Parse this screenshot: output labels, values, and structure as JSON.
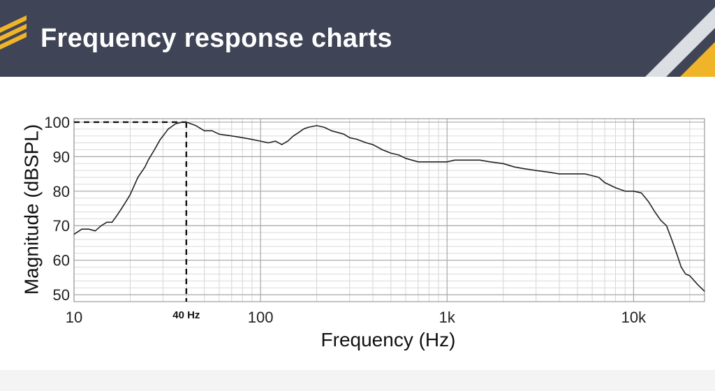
{
  "header": {
    "title": "Frequency response charts",
    "bg_color": "#3f4557",
    "accent_color": "#f0b429"
  },
  "chart_data": {
    "type": "line",
    "xscale": "log",
    "xlim": [
      10,
      24000
    ],
    "ylim": [
      48,
      101
    ],
    "grid": true,
    "xlabel": "Frequency (Hz)",
    "ylabel": "Magnitude (dBSPL)",
    "x_ticks": [
      {
        "value": 10,
        "label": "10"
      },
      {
        "value": 100,
        "label": "100"
      },
      {
        "value": 1000,
        "label": "1k"
      },
      {
        "value": 10000,
        "label": "10k"
      }
    ],
    "y_ticks": [
      {
        "value": 100,
        "label": "100"
      },
      {
        "value": 90,
        "label": "90"
      },
      {
        "value": 80,
        "label": "80"
      },
      {
        "value": 70,
        "label": "70"
      },
      {
        "value": 60,
        "label": "60"
      },
      {
        "value": 50,
        "label": "50"
      }
    ],
    "annotation": {
      "x": 40,
      "y": 100,
      "label": "40 Hz",
      "style": "dashed"
    },
    "series": [
      {
        "color": "#222222",
        "x": [
          10,
          11,
          12,
          13,
          14,
          15,
          16,
          17,
          18,
          19,
          20,
          22,
          24,
          25,
          27,
          29,
          30,
          32,
          35,
          38,
          40,
          45,
          50,
          55,
          60,
          70,
          80,
          90,
          100,
          110,
          120,
          130,
          140,
          150,
          160,
          170,
          180,
          200,
          220,
          240,
          260,
          280,
          300,
          330,
          370,
          400,
          450,
          500,
          550,
          600,
          700,
          800,
          900,
          1000,
          1100,
          1200,
          1300,
          1500,
          1700,
          2000,
          2300,
          2600,
          3000,
          3500,
          4000,
          4500,
          5000,
          5500,
          6000,
          6500,
          7000,
          8000,
          9000,
          10000,
          11000,
          12000,
          13000,
          14000,
          15000,
          16000,
          17000,
          18000,
          19000,
          20000,
          22000,
          24000
        ],
        "y": [
          67.5,
          69,
          69,
          68.5,
          70,
          71,
          71,
          73,
          75,
          77,
          79,
          84,
          87,
          89,
          92,
          95,
          96,
          98,
          99.5,
          100,
          100,
          99,
          97.5,
          97.5,
          96.5,
          96,
          95.5,
          95,
          94.5,
          94,
          94.5,
          93.5,
          94.5,
          96,
          97,
          98,
          98.5,
          99,
          98.5,
          97.5,
          97,
          96.5,
          95.5,
          95,
          94,
          93.5,
          92,
          91,
          90.5,
          89.5,
          88.5,
          88.5,
          88.5,
          88.5,
          89,
          89,
          89,
          89,
          88.5,
          88,
          87,
          86.5,
          86,
          85.5,
          85,
          85,
          85,
          85,
          84.5,
          84,
          82.5,
          81,
          80,
          80,
          79.5,
          77,
          74,
          71.5,
          70,
          66,
          62,
          58,
          56,
          55.5,
          53,
          51
        ]
      }
    ]
  }
}
